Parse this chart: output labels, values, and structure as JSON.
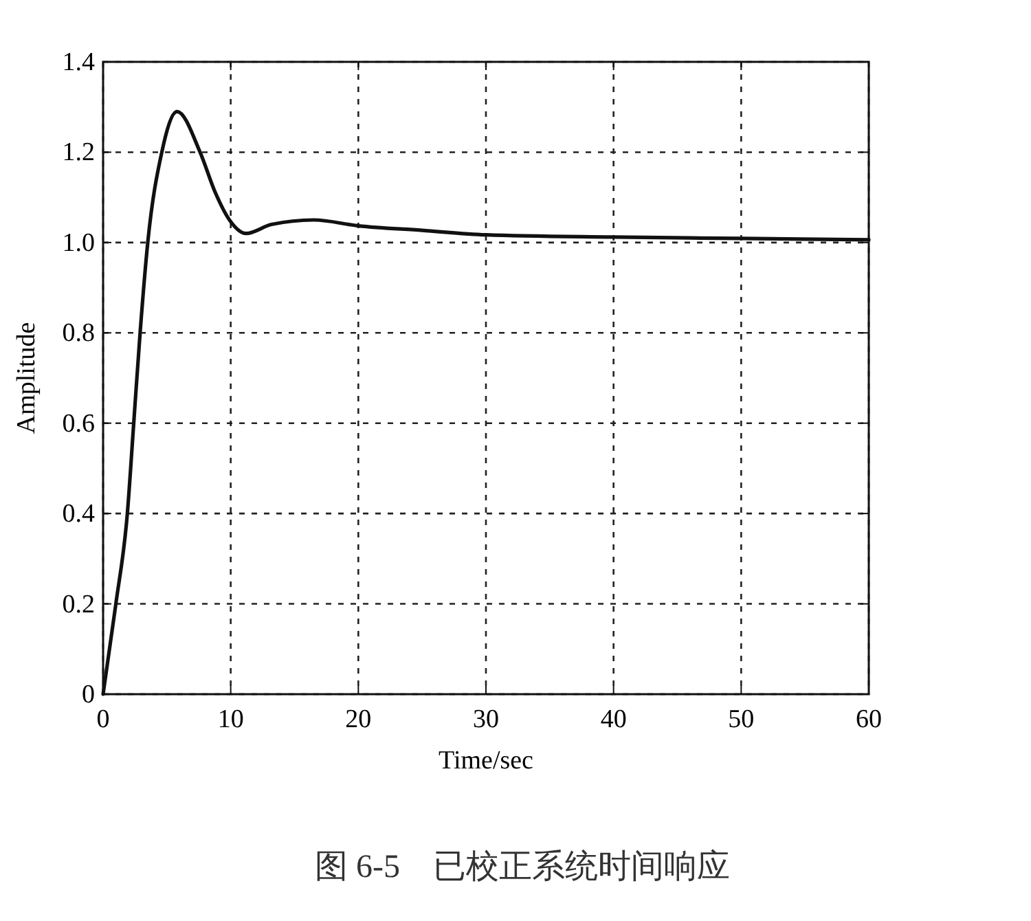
{
  "chart_data": {
    "type": "line",
    "xlabel": "Time/sec",
    "ylabel": "Amplitude",
    "annotations": [
      "图 6-5　已校正系统时间响应"
    ],
    "x": [
      0,
      1,
      1.9,
      2.4,
      2.9,
      3.5,
      4.6,
      5.8,
      7.6,
      8.8,
      9.9,
      11.2,
      13.2,
      16.5,
      20,
      25,
      30,
      40,
      50,
      60
    ],
    "series": [
      {
        "color": "#111111",
        "values": [
          0,
          0.2,
          0.4,
          0.6,
          0.8,
          1.0,
          1.2,
          1.29,
          1.2,
          1.11,
          1.05,
          1.02,
          1.04,
          1.05,
          1.037,
          1.027,
          1.017,
          1.012,
          1.009,
          1.006
        ]
      }
    ],
    "xlim": [
      0,
      60
    ],
    "ylim": [
      0,
      1.4
    ],
    "xticks": [
      0,
      10,
      20,
      30,
      40,
      50,
      60
    ],
    "yticks": [
      0,
      0.2,
      0.4,
      0.6,
      0.8,
      {
        "value": 1,
        "label": "1.0"
      },
      1.2,
      1.4
    ],
    "grid": true,
    "line_style": "solid",
    "marker": "none"
  }
}
